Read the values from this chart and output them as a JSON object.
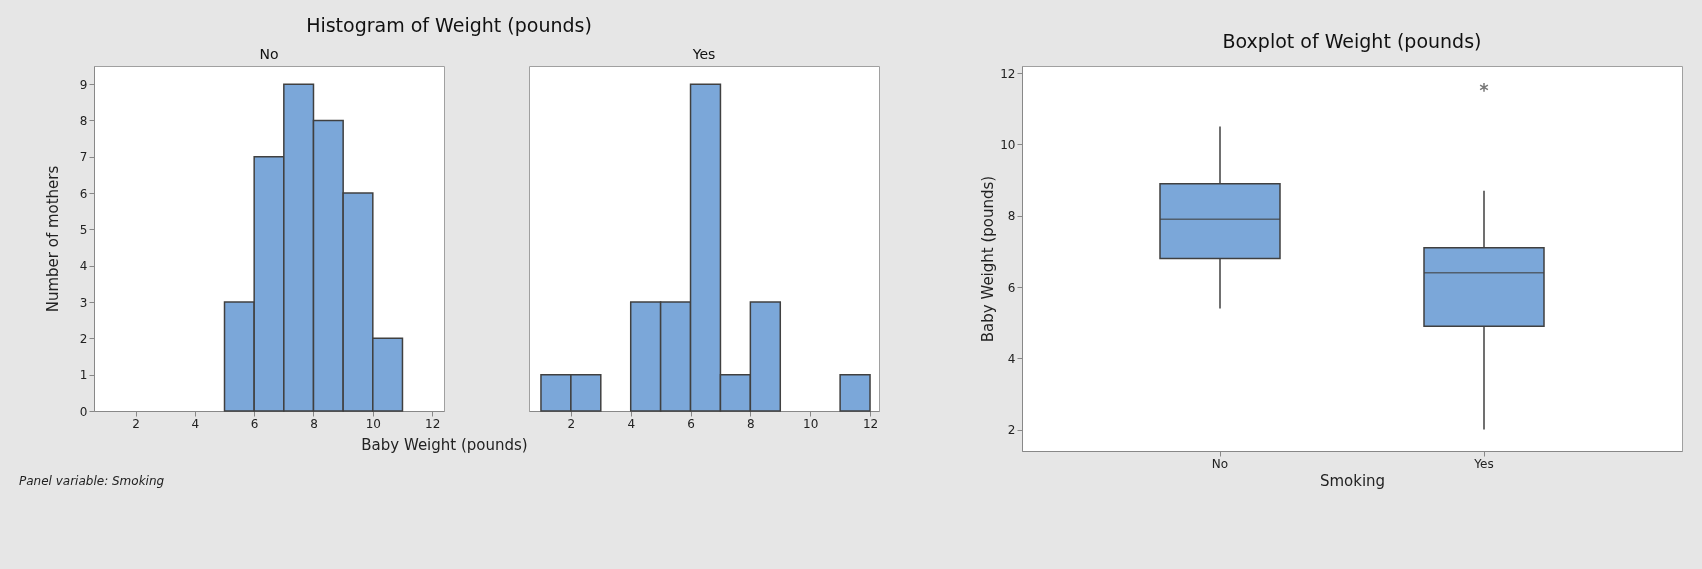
{
  "chart_data": [
    {
      "type": "histogram",
      "title": "Histogram of Weight (pounds)",
      "subtitle": "No",
      "xlabel": "Baby Weight (pounds)",
      "ylabel": "Number of mothers",
      "bins": [
        5,
        6,
        7,
        8,
        9,
        10,
        11
      ],
      "values": [
        3,
        7,
        9,
        8,
        6,
        2
      ],
      "color": "#7ba7d9",
      "xlim": [
        0.6,
        12.4
      ],
      "xticks": [
        2,
        4,
        6,
        8,
        10,
        12
      ],
      "ylim": [
        0,
        9.5
      ],
      "yticks": [
        0,
        1,
        2,
        3,
        4,
        5,
        6,
        7,
        8,
        9
      ],
      "grid": false,
      "annotations": [
        "Panel variable: Smoking"
      ]
    },
    {
      "type": "histogram",
      "subtitle": "Yes",
      "bins": [
        1,
        2,
        3,
        4,
        5,
        6,
        7,
        8,
        9,
        10,
        11,
        12
      ],
      "values": [
        1,
        1,
        0,
        3,
        3,
        9,
        1,
        3,
        0,
        0,
        1
      ],
      "color": "#7ba7d9",
      "xlim": [
        0.6,
        12.3
      ],
      "xticks": [
        2,
        4,
        6,
        8,
        10,
        12
      ],
      "ylim": [
        0,
        9.5
      ],
      "grid": false,
      "tick_labels": "x"
    },
    {
      "type": "box",
      "title": "Boxplot of Weight (pounds)",
      "xlabel": "Smoking",
      "ylabel": "Baby Weight (pounds)",
      "categories": [
        "No",
        "Yes"
      ],
      "color": "#7ba7d9",
      "ylim": [
        1.4,
        12.2
      ],
      "yticks": [
        2,
        4,
        6,
        8,
        10,
        12
      ],
      "grid": false,
      "boxes": [
        {
          "low": 5.4,
          "q1": 6.8,
          "median": 7.9,
          "q3": 8.9,
          "high": 10.5
        },
        {
          "low": 2.0,
          "q1": 4.9,
          "median": 6.4,
          "q3": 7.1,
          "high": 8.7,
          "outliers": [
            11.6
          ]
        }
      ]
    }
  ]
}
